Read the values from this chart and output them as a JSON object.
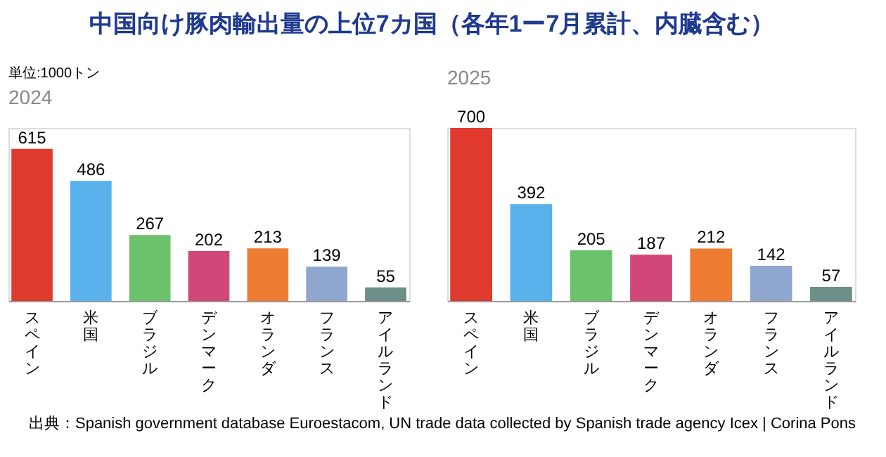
{
  "chart_data": [
    {
      "type": "bar",
      "title": "中国向け豚肉輸出量の上位7カ国（各年1ー7月累計、内臓含む）",
      "subtitle": "2024",
      "ylabel": "単位:1000トン",
      "annotations": [
        "出典：Spanish government database Euroestacom, UN trade data collected by Spanish trade agency Icex | Corina Pons"
      ],
      "categories": [
        "スペイン",
        "米国",
        "ブラジル",
        "デンマーク",
        "オランダ",
        "フランス",
        "アイルランド"
      ],
      "values": [
        615,
        486,
        267,
        202,
        213,
        139,
        55
      ],
      "colors": [
        "#e03a2e",
        "#58b1ea",
        "#6cc26b",
        "#d2477a",
        "#ef7c33",
        "#8fa7cf",
        "#6e8e8a"
      ],
      "ylim": [
        0,
        700
      ],
      "data_labels": true,
      "tick_labels": "x",
      "grid": false
    },
    {
      "type": "bar",
      "subtitle": "2025",
      "categories": [
        "スペイン",
        "米国",
        "ブラジル",
        "デンマーク",
        "オランダ",
        "フランス",
        "アイルランド"
      ],
      "values": [
        700,
        392,
        205,
        187,
        212,
        142,
        57
      ],
      "colors": [
        "#e03a2e",
        "#58b1ea",
        "#6cc26b",
        "#d2477a",
        "#ef7c33",
        "#8fa7cf",
        "#6e8e8a"
      ],
      "ylim": [
        0,
        700
      ],
      "data_labels": true,
      "tick_labels": "x",
      "grid": false
    }
  ]
}
